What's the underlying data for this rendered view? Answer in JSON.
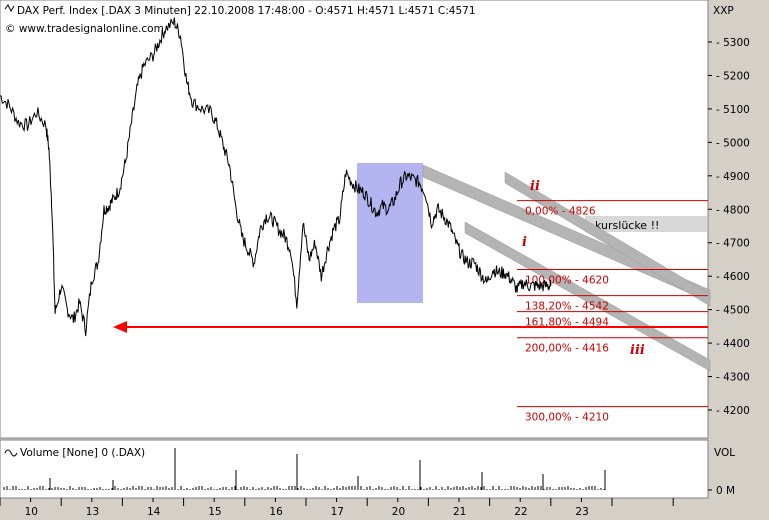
{
  "header": {
    "title": "DAX Perf. Index [.DAX  3 Minuten] 22.10.2008 17:48:00 - O:4571 H:4571 L:4571 C:4571",
    "copyright": "© www.tradesignalonline.com",
    "symbol": "XXP"
  },
  "volume_panel": {
    "label": "Volume [None] 0 (.DAX)",
    "axis_label": "VOL",
    "zero_label": "0 M"
  },
  "annotations": {
    "gap": "kurslücke !!",
    "wave_i": "i",
    "wave_ii": "ii",
    "wave_iii": "iii"
  },
  "colors": {
    "background": "#ffffff",
    "panel_bg": "#d4d0c8",
    "price_line": "#000000",
    "fib_red": "#cc0000",
    "highlight_box": "#b4b4f0",
    "channel": "#b4b4b4",
    "gap_box": "#d8d8d8"
  },
  "chart_data": {
    "type": "line",
    "title": "DAX Perf. Index [.DAX  3 Minuten] 22.10.2008 17:48:00 - O:4571 H:4571 L:4571 C:4571",
    "ylabel": "",
    "ylim": [
      4100,
      5380
    ],
    "y_ticks": [
      5300,
      5200,
      5100,
      5000,
      4900,
      4800,
      4700,
      4600,
      4500,
      4400,
      4300,
      4200
    ],
    "x_day_labels": [
      "10",
      "13",
      "14",
      "15",
      "16",
      "17",
      "20",
      "21",
      "22",
      "23"
    ],
    "x_day_index": [
      0.5,
      1.5,
      2.5,
      3.5,
      4.5,
      5.5,
      6.5,
      7.5,
      8.5,
      9.5
    ],
    "fib_levels": [
      {
        "label": "0,00% - 4826",
        "value": 4826
      },
      {
        "label": "100,00% - 4620",
        "value": 4620
      },
      {
        "label": "138,20% - 4542",
        "value": 4542
      },
      {
        "label": "161,80% - 4494",
        "value": 4494
      },
      {
        "label": "200,00% - 4416",
        "value": 4416
      },
      {
        "label": "300,00% - 4210",
        "value": 4210
      }
    ],
    "series": [
      {
        "type": "line",
        "x": [
          0.0,
          0.15,
          0.3,
          0.45,
          0.6,
          0.75,
          0.8,
          0.85,
          0.9,
          1.0,
          1.1,
          1.2,
          1.3,
          1.4,
          1.5,
          1.6,
          1.7,
          1.78,
          1.85,
          1.95,
          2.05,
          2.15,
          2.25,
          2.35,
          2.5,
          2.6,
          2.7,
          2.85,
          2.95,
          3.05,
          3.15,
          3.3,
          3.45,
          3.55,
          3.65,
          3.75,
          3.85,
          3.95,
          4.05,
          4.15,
          4.25,
          4.35,
          4.45,
          4.55,
          4.65,
          4.75,
          4.85,
          4.95,
          5.05,
          5.15,
          5.25,
          5.35,
          5.45,
          5.55,
          5.65,
          5.75,
          5.85,
          5.95,
          6.05,
          6.15,
          6.25,
          6.35,
          6.45,
          6.55,
          6.65,
          6.75,
          6.85,
          6.95,
          7.05,
          7.15,
          7.25,
          7.35,
          7.45,
          7.55,
          7.65,
          7.75,
          7.85,
          7.95,
          8.05,
          8.15,
          8.25,
          8.35,
          8.45,
          8.55,
          8.65,
          8.75,
          8.85,
          8.95,
          9.0
        ],
        "values": [
          5140,
          5110,
          5060,
          5050,
          5090,
          5050,
          4980,
          4800,
          4490,
          4570,
          4500,
          4470,
          4520,
          4440,
          4590,
          4640,
          4800,
          4810,
          4830,
          4860,
          4940,
          5060,
          5170,
          5230,
          5260,
          5300,
          5340,
          5360,
          5320,
          5180,
          5120,
          5100,
          5090,
          5050,
          4990,
          4930,
          4810,
          4720,
          4680,
          4640,
          4740,
          4780,
          4770,
          4740,
          4720,
          4680,
          4520,
          4760,
          4650,
          4700,
          4600,
          4680,
          4740,
          4770,
          4910,
          4880,
          4860,
          4850,
          4820,
          4790,
          4810,
          4800,
          4830,
          4880,
          4900,
          4890,
          4880,
          4850,
          4760,
          4800,
          4780,
          4750,
          4700,
          4660,
          4640,
          4640,
          4610,
          4580,
          4620,
          4610,
          4610,
          4590,
          4560,
          4580,
          4571,
          4571,
          4571,
          4571,
          4571
        ]
      }
    ],
    "volume": {
      "ylabel": "VOL",
      "y_zero_label": "0 M"
    }
  }
}
